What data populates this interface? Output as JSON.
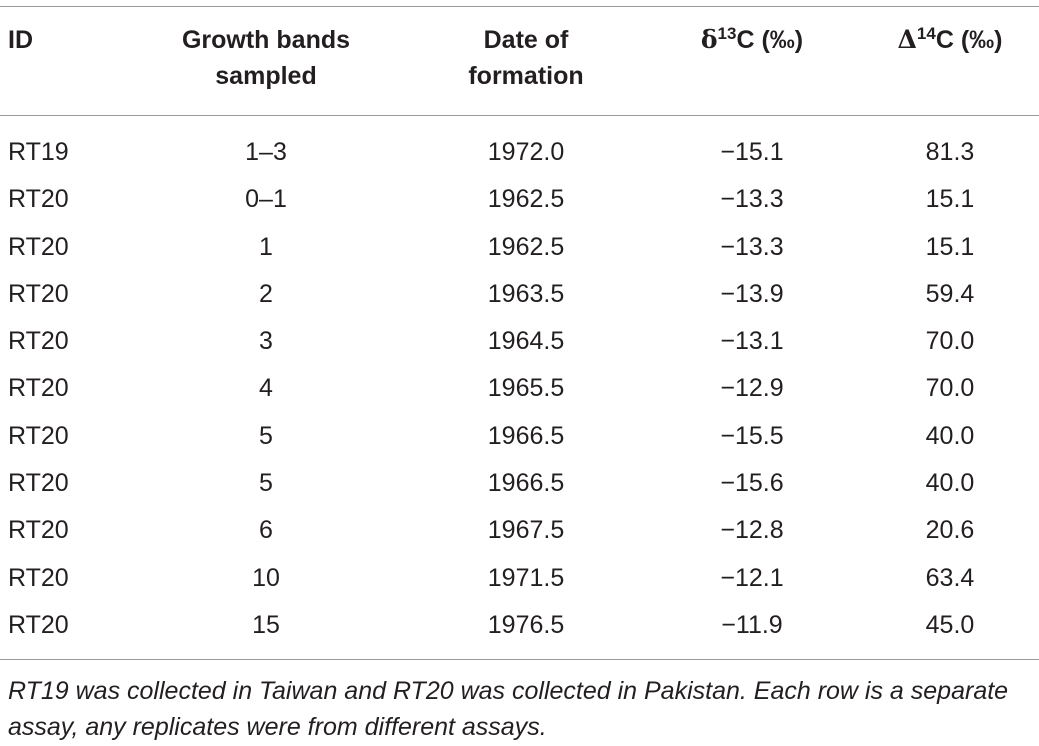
{
  "table": {
    "headers": {
      "id": "ID",
      "bands_line1": "Growth bands",
      "bands_line2": "sampled",
      "date_line1": "Date of",
      "date_line2": "formation",
      "d13_symbol": "δ",
      "d13_sup": "13",
      "d13_rest": "C (‰)",
      "d14_symbol": "Δ",
      "d14_sup": "14",
      "d14_rest": "C (‰)"
    },
    "rows": [
      {
        "id": "RT19",
        "bands": "1–3",
        "date": "1972.0",
        "d13c": "−15.1",
        "d14c": "81.3"
      },
      {
        "id": "RT20",
        "bands": "0–1",
        "date": "1962.5",
        "d13c": "−13.3",
        "d14c": "15.1"
      },
      {
        "id": "RT20",
        "bands": "1",
        "date": "1962.5",
        "d13c": "−13.3",
        "d14c": "15.1"
      },
      {
        "id": "RT20",
        "bands": "2",
        "date": "1963.5",
        "d13c": "−13.9",
        "d14c": "59.4"
      },
      {
        "id": "RT20",
        "bands": "3",
        "date": "1964.5",
        "d13c": "−13.1",
        "d14c": "70.0"
      },
      {
        "id": "RT20",
        "bands": "4",
        "date": "1965.5",
        "d13c": "−12.9",
        "d14c": "70.0"
      },
      {
        "id": "RT20",
        "bands": "5",
        "date": "1966.5",
        "d13c": "−15.5",
        "d14c": "40.0"
      },
      {
        "id": "RT20",
        "bands": "5",
        "date": "1966.5",
        "d13c": "−15.6",
        "d14c": "40.0"
      },
      {
        "id": "RT20",
        "bands": "6",
        "date": "1967.5",
        "d13c": "−12.8",
        "d14c": "20.6"
      },
      {
        "id": "RT20",
        "bands": "10",
        "date": "1971.5",
        "d13c": "−12.1",
        "d14c": "63.4"
      },
      {
        "id": "RT20",
        "bands": "15",
        "date": "1976.5",
        "d13c": "−11.9",
        "d14c": "45.0"
      }
    ],
    "footnote": "RT19 was collected in Taiwan and RT20 was collected in Pakistan. Each row is a separate assay, any replicates were from different assays."
  }
}
